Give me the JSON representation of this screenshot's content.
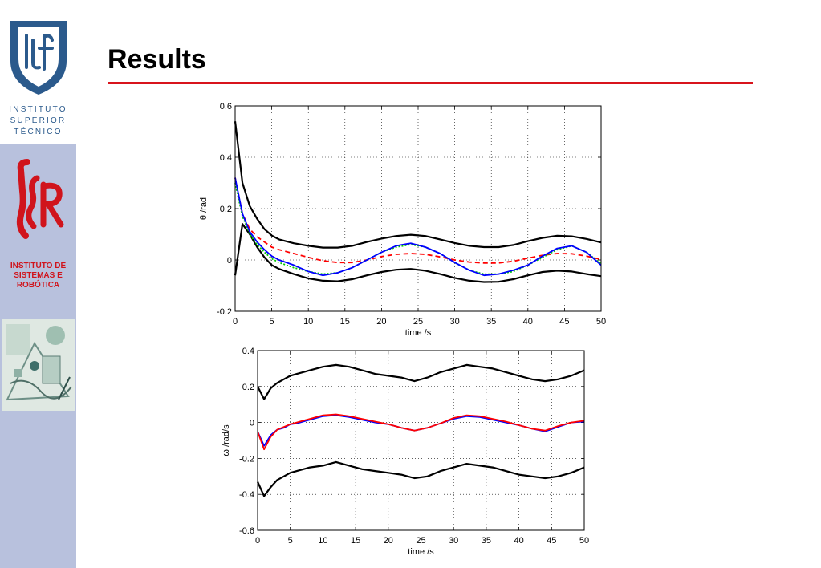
{
  "slide": {
    "title": "Results"
  },
  "sidebar": {
    "ist_lines": [
      "INSTITUTO",
      "SUPERIOR",
      "TÉCNICO"
    ],
    "isr_lines": [
      "INSTITUTO DE",
      "SISTEMAS E",
      "ROBÓTICA"
    ],
    "colors": {
      "background": "#b8c1dd",
      "ist_blue": "#2b5a8c",
      "isr_red": "#d0141c"
    }
  },
  "colors": {
    "title_rule": "#d8141c"
  },
  "chart_data": [
    {
      "type": "line",
      "xlabel": "time /s",
      "ylabel": "θ /rad",
      "xlim": [
        0,
        50
      ],
      "ylim": [
        -0.2,
        0.6
      ],
      "xticks": [
        "0",
        "5",
        "10",
        "15",
        "20",
        "25",
        "30",
        "35",
        "40",
        "45",
        "50"
      ],
      "yticks": [
        "-0.2",
        "0",
        "0.2",
        "0.4",
        "0.6"
      ],
      "grid": true,
      "x": [
        0,
        1,
        2,
        3,
        4,
        5,
        6,
        8,
        10,
        12,
        14,
        16,
        18,
        20,
        22,
        24,
        26,
        28,
        30,
        32,
        34,
        36,
        38,
        40,
        42,
        44,
        46,
        48,
        50
      ],
      "series": [
        {
          "color": "#000000",
          "style": "solid",
          "values": [
            0.54,
            0.3,
            0.21,
            0.16,
            0.12,
            0.095,
            0.08,
            0.065,
            0.055,
            0.048,
            0.048,
            0.055,
            0.07,
            0.083,
            0.093,
            0.098,
            0.093,
            0.08,
            0.066,
            0.055,
            0.05,
            0.05,
            0.058,
            0.073,
            0.086,
            0.094,
            0.092,
            0.082,
            0.068
          ]
        },
        {
          "color": "#000000",
          "style": "solid",
          "values": [
            -0.06,
            0.14,
            0.1,
            0.05,
            0.01,
            -0.02,
            -0.035,
            -0.055,
            -0.072,
            -0.081,
            -0.083,
            -0.075,
            -0.06,
            -0.047,
            -0.038,
            -0.035,
            -0.042,
            -0.055,
            -0.07,
            -0.081,
            -0.086,
            -0.085,
            -0.075,
            -0.06,
            -0.047,
            -0.042,
            -0.045,
            -0.055,
            -0.063
          ]
        },
        {
          "color": "#ff0000",
          "style": "dashed",
          "values": [
            0.32,
            0.18,
            0.12,
            0.09,
            0.07,
            0.05,
            0.04,
            0.025,
            0.01,
            -0.003,
            -0.01,
            -0.01,
            0.0,
            0.013,
            0.022,
            0.025,
            0.022,
            0.012,
            0.0,
            -0.008,
            -0.012,
            -0.012,
            -0.005,
            0.007,
            0.018,
            0.025,
            0.024,
            0.015,
            0.002
          ]
        },
        {
          "color": "#00cc00",
          "style": "dotted",
          "values": [
            0.3,
            0.17,
            0.1,
            0.06,
            0.03,
            0.005,
            -0.01,
            -0.03,
            -0.045,
            -0.055,
            -0.05,
            -0.03,
            0.0,
            0.03,
            0.05,
            0.06,
            0.05,
            0.025,
            -0.01,
            -0.04,
            -0.055,
            -0.055,
            -0.045,
            -0.02,
            0.01,
            0.04,
            0.055,
            0.03,
            -0.015
          ]
        },
        {
          "color": "#0000ff",
          "style": "solid",
          "values": [
            0.32,
            0.18,
            0.11,
            0.07,
            0.04,
            0.015,
            0.0,
            -0.02,
            -0.045,
            -0.06,
            -0.05,
            -0.03,
            0.0,
            0.03,
            0.055,
            0.065,
            0.05,
            0.025,
            -0.01,
            -0.04,
            -0.06,
            -0.055,
            -0.04,
            -0.02,
            0.015,
            0.045,
            0.055,
            0.03,
            -0.02
          ]
        }
      ]
    },
    {
      "type": "line",
      "xlabel": "time /s",
      "ylabel": "ω /rad/s",
      "xlim": [
        0,
        50
      ],
      "ylim": [
        -0.6,
        0.4
      ],
      "xticks": [
        "0",
        "5",
        "10",
        "15",
        "20",
        "25",
        "30",
        "35",
        "40",
        "45",
        "50"
      ],
      "yticks": [
        "-0.6",
        "-0.4",
        "-0.2",
        "0",
        "0.2",
        "0.4"
      ],
      "grid": true,
      "x": [
        0,
        1,
        2,
        3,
        4,
        5,
        6,
        8,
        10,
        12,
        14,
        16,
        18,
        20,
        22,
        24,
        26,
        28,
        30,
        32,
        34,
        36,
        38,
        40,
        42,
        44,
        46,
        48,
        50
      ],
      "series": [
        {
          "color": "#000000",
          "style": "solid",
          "values": [
            0.2,
            0.13,
            0.19,
            0.22,
            0.24,
            0.26,
            0.27,
            0.29,
            0.31,
            0.32,
            0.31,
            0.29,
            0.27,
            0.26,
            0.25,
            0.23,
            0.25,
            0.28,
            0.3,
            0.32,
            0.31,
            0.3,
            0.28,
            0.26,
            0.24,
            0.23,
            0.24,
            0.26,
            0.29
          ]
        },
        {
          "color": "#000000",
          "style": "solid",
          "values": [
            -0.33,
            -0.41,
            -0.36,
            -0.32,
            -0.3,
            -0.28,
            -0.27,
            -0.25,
            -0.24,
            -0.22,
            -0.24,
            -0.26,
            -0.27,
            -0.28,
            -0.29,
            -0.31,
            -0.3,
            -0.27,
            -0.25,
            -0.23,
            -0.24,
            -0.25,
            -0.27,
            -0.29,
            -0.3,
            -0.31,
            -0.3,
            -0.28,
            -0.25
          ]
        },
        {
          "color": "#0000ff",
          "style": "solid",
          "values": [
            -0.05,
            -0.13,
            -0.07,
            -0.04,
            -0.03,
            -0.01,
            -0.005,
            0.015,
            0.035,
            0.04,
            0.03,
            0.015,
            0.0,
            -0.01,
            -0.03,
            -0.045,
            -0.03,
            -0.005,
            0.02,
            0.035,
            0.03,
            0.015,
            0.0,
            -0.015,
            -0.035,
            -0.05,
            -0.025,
            0.0,
            0.005
          ]
        },
        {
          "color": "#ff0000",
          "style": "solid",
          "values": [
            -0.05,
            -0.15,
            -0.08,
            -0.04,
            -0.025,
            -0.01,
            0.0,
            0.02,
            0.04,
            0.045,
            0.035,
            0.02,
            0.005,
            -0.01,
            -0.03,
            -0.045,
            -0.03,
            -0.005,
            0.025,
            0.04,
            0.035,
            0.02,
            0.005,
            -0.015,
            -0.035,
            -0.045,
            -0.02,
            0.0,
            0.01
          ]
        }
      ]
    }
  ]
}
